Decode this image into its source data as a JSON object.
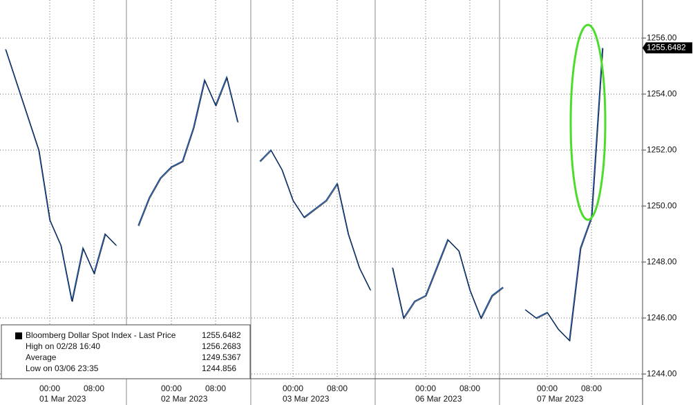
{
  "chart_data": {
    "type": "line",
    "categories": [
      null,
      null,
      null,
      null,
      "00:00",
      null,
      null,
      null,
      "08:00",
      null,
      null,
      null,
      null,
      null,
      null,
      "00:00",
      null,
      null,
      null,
      "08:00",
      null,
      null,
      null,
      null,
      null,
      null,
      "00:00",
      null,
      null,
      null,
      "08:00",
      null,
      null,
      null,
      null,
      null,
      null,
      null,
      "00:00",
      null,
      null,
      null,
      "08:00",
      null,
      null,
      null,
      null,
      null,
      null,
      "00:00",
      null,
      null,
      null,
      "08:00",
      null,
      null,
      null,
      null
    ],
    "date_labels": [
      {
        "value": 4,
        "label": "01 Mar 2023"
      },
      {
        "value": 15,
        "label": "02 Mar 2023"
      },
      {
        "value": 26,
        "label": "03 Mar 2023"
      },
      {
        "value": 38,
        "label": "06 Mar 2023"
      },
      {
        "value": 49,
        "label": "07 Mar 2023"
      }
    ],
    "series": [
      {
        "name": "Bloomberg Dollar Spot Index - Last Price",
        "color": "#1c4f9c",
        "values": [
          1255.6,
          1254.4,
          1253.2,
          1252.0,
          1249.5,
          1248.6,
          1246.6,
          1248.5,
          1247.6,
          1249.0,
          1248.6,
          null,
          1249.3,
          1250.3,
          1251.0,
          1251.4,
          1251.6,
          1252.8,
          1254.5,
          1253.6,
          1254.6,
          1253.0,
          null,
          1251.6,
          1252.0,
          1251.3,
          1250.2,
          1249.6,
          1249.9,
          1250.2,
          1250.8,
          1249.0,
          1247.8,
          1247.0,
          null,
          1247.8,
          1246.0,
          1246.6,
          1246.8,
          1247.8,
          1248.8,
          1248.4,
          1247.0,
          1246.0,
          1246.8,
          1247.1,
          null,
          1246.3,
          1246.0,
          1246.2,
          1245.6,
          1245.2,
          1248.5,
          1249.6,
          1255.65,
          null,
          null,
          null
        ]
      }
    ],
    "legend": {
      "title": "Bloomberg Dollar Spot Index - Last Price",
      "last": 1255.6482,
      "high_label": "High on 02/28 16:40",
      "high": 1256.2683,
      "average_label": "Average",
      "average": 1249.5367,
      "low_label": "Low on 03/06 23:35",
      "low": 1244.856
    },
    "last_price_label": "1255.6482",
    "ylim": [
      1243.83,
      1257.36
    ],
    "yticks": [
      {
        "value": 1244,
        "label": "1244.00"
      },
      {
        "value": 1246,
        "label": "1246.00"
      },
      {
        "value": 1248,
        "label": "1248.00"
      },
      {
        "value": 1250,
        "label": "1250.00"
      },
      {
        "value": 1252,
        "label": "1252.00"
      },
      {
        "value": 1254,
        "label": "1254.00"
      },
      {
        "value": 1256,
        "label": "1256.00"
      }
    ],
    "grid": true
  }
}
